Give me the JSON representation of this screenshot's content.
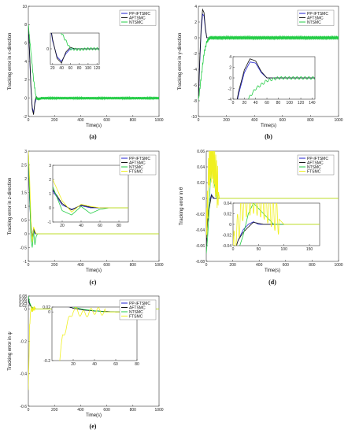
{
  "colors": {
    "PP-IFTSMC": "#1f1fd0",
    "AFTSMC": "#111111",
    "NTSMC": "#22cc44",
    "FTSMC": "#f0f020"
  },
  "chart_data": [
    {
      "type": "line",
      "caption": "(a)",
      "xlabel": "Time(s)",
      "ylabel": "Tracking error in x-direction",
      "xlim": [
        0,
        1000
      ],
      "ylim": [
        -2,
        10
      ],
      "xticks": [
        0,
        200,
        400,
        600,
        800,
        1000
      ],
      "yticks": [
        -2,
        0,
        2,
        4,
        6,
        8,
        10
      ],
      "legend": [
        "PP-IFTSMC",
        "AFTSMC",
        "NTSMC"
      ],
      "series": [
        {
          "name": "PP-IFTSMC",
          "x": [
            0,
            10,
            20,
            30,
            40,
            50,
            60,
            70,
            1000
          ],
          "y": [
            8,
            4.5,
            1,
            -1,
            -1.6,
            -0.6,
            0,
            0,
            0
          ]
        },
        {
          "name": "AFTSMC",
          "x": [
            0,
            10,
            20,
            30,
            40,
            50,
            60,
            70,
            1000
          ],
          "y": [
            8,
            4.8,
            1.2,
            -1.2,
            -1.8,
            -0.4,
            0.2,
            0,
            0
          ]
        },
        {
          "name": "NTSMC",
          "x": [
            0,
            20,
            40,
            60,
            80,
            100,
            1000
          ],
          "y": [
            8,
            5,
            2,
            0,
            -0.1,
            0,
            0
          ],
          "oscillation": 0.15
        }
      ],
      "inset": {
        "xlim": [
          15,
          125
        ],
        "ylim": [
          -2,
          2
        ],
        "xticks": [
          20,
          40,
          60,
          80,
          100,
          120
        ],
        "yticks": [
          0
        ]
      }
    },
    {
      "type": "line",
      "caption": "(b)",
      "xlabel": "Time(s)",
      "ylabel": "Tracking error in y-direction",
      "xlim": [
        0,
        1000
      ],
      "ylim": [
        -10,
        4
      ],
      "xticks": [
        0,
        200,
        400,
        600,
        800,
        1000
      ],
      "yticks": [
        -10,
        -8,
        -6,
        -4,
        -2,
        0,
        2,
        4
      ],
      "legend": [
        "PP-IFTSMC",
        "AFTSMC",
        "NTSMC"
      ],
      "series": [
        {
          "name": "PP-IFTSMC",
          "x": [
            0,
            10,
            20,
            30,
            40,
            50,
            60,
            70,
            1000
          ],
          "y": [
            -8,
            -3,
            1,
            3,
            2.8,
            1,
            0,
            0,
            0
          ]
        },
        {
          "name": "AFTSMC",
          "x": [
            0,
            10,
            20,
            30,
            40,
            50,
            60,
            70,
            1000
          ],
          "y": [
            -8,
            -2.5,
            1.5,
            3.6,
            3.2,
            1.2,
            0,
            0,
            0
          ]
        },
        {
          "name": "NTSMC",
          "x": [
            0,
            20,
            40,
            60,
            80,
            100,
            1000
          ],
          "y": [
            -8,
            -5,
            -2,
            -0.5,
            0,
            0,
            0
          ],
          "oscillation": 0.25
        }
      ],
      "inset": {
        "xlim": [
          0,
          145
        ],
        "ylim": [
          -4,
          4
        ],
        "xticks": [
          0,
          20,
          40,
          60,
          80,
          100,
          120,
          140
        ],
        "yticks": [
          -4,
          -2,
          0,
          2,
          4
        ]
      }
    },
    {
      "type": "line",
      "caption": "(c)",
      "xlabel": "Time(s)",
      "ylabel": "Tracking error in z-direction",
      "xlim": [
        0,
        1000
      ],
      "ylim": [
        -1,
        3
      ],
      "xticks": [
        0,
        200,
        400,
        600,
        800,
        1000
      ],
      "yticks": [
        -1,
        -0.5,
        0,
        0.5,
        1,
        1.5,
        2,
        2.5,
        3
      ],
      "legend": [
        "PP-IFTSMC",
        "AFTSMC",
        "NTSMC",
        "FTSMC"
      ],
      "series": [
        {
          "name": "PP-IFTSMC",
          "x": [
            0,
            10,
            20,
            30,
            40,
            50,
            60,
            70,
            1000
          ],
          "y": [
            3,
            1.2,
            0.2,
            -0.1,
            0.15,
            0,
            0,
            0,
            0
          ]
        },
        {
          "name": "AFTSMC",
          "x": [
            0,
            10,
            20,
            30,
            40,
            50,
            60,
            70,
            1000
          ],
          "y": [
            3,
            1.3,
            0.3,
            -0.15,
            0.2,
            0.05,
            0,
            0,
            0
          ]
        },
        {
          "name": "NTSMC",
          "x": [
            0,
            10,
            20,
            30,
            40,
            50,
            60,
            70,
            80,
            1000
          ],
          "y": [
            3,
            1.5,
            -0.2,
            -0.5,
            0.1,
            -0.4,
            -0.1,
            0,
            0,
            0
          ]
        },
        {
          "name": "FTSMC",
          "x": [
            0,
            10,
            20,
            30,
            40,
            50,
            60,
            70,
            1000
          ],
          "y": [
            3,
            2,
            0.5,
            -0.3,
            0.25,
            0.1,
            0,
            0,
            0
          ]
        }
      ],
      "inset": {
        "xlim": [
          10,
          90
        ],
        "ylim": [
          -1,
          3
        ],
        "xticks": [
          20,
          40,
          60,
          80
        ],
        "yticks": [
          -1,
          0,
          1,
          2,
          3
        ]
      }
    },
    {
      "type": "line",
      "caption": "(d)",
      "xlabel": "Time(s)",
      "ylabel": "Tracking error in θ",
      "xlim": [
        0,
        1000
      ],
      "ylim": [
        -0.08,
        0.06
      ],
      "xticks": [
        0,
        200,
        400,
        600,
        800,
        1000
      ],
      "yticks": [
        -0.08,
        -0.06,
        -0.04,
        -0.02,
        0,
        0.02,
        0.04,
        0.06
      ],
      "legend": [
        "PP-IFTSMC",
        "AFTSMC",
        "NTSMC",
        "FTSMC"
      ],
      "series": [
        {
          "name": "PP-IFTSMC",
          "x": [
            0,
            10,
            20,
            30,
            40,
            50,
            60,
            1000
          ],
          "y": [
            -0.06,
            -0.03,
            -0.01,
            0,
            0.005,
            0,
            0,
            0
          ]
        },
        {
          "name": "AFTSMC",
          "x": [
            0,
            10,
            20,
            30,
            40,
            50,
            60,
            1000
          ],
          "y": [
            -0.06,
            -0.03,
            -0.015,
            -0.005,
            0.004,
            0.002,
            0,
            0
          ]
        },
        {
          "name": "NTSMC",
          "x": [
            0,
            10,
            20,
            30,
            40,
            60,
            80,
            1000
          ],
          "y": [
            -0.07,
            -0.05,
            -0.02,
            0.02,
            0.04,
            0.02,
            0,
            0
          ]
        },
        {
          "name": "FTSMC",
          "x": [
            0,
            20,
            40,
            60,
            80,
            100,
            1000
          ],
          "y": [
            -0.05,
            0.04,
            0.05,
            0.04,
            0.02,
            0,
            0
          ],
          "oscillation": 0.03,
          "osc_until": 90
        }
      ],
      "inset": {
        "xlim": [
          0,
          170
        ],
        "ylim": [
          -0.04,
          0.04
        ],
        "xticks": [
          0,
          50,
          100,
          150
        ],
        "yticks": [
          -0.04,
          -0.02,
          0,
          0.02,
          0.04
        ]
      }
    },
    {
      "type": "line",
      "caption": "(e)",
      "xlabel": "Time(s)",
      "ylabel": "Tracking error in ψ",
      "xlim": [
        0,
        1000
      ],
      "ylim": [
        -0.6,
        0.08
      ],
      "xticks": [
        0,
        200,
        400,
        600,
        800,
        1000
      ],
      "yticks": [
        -0.6,
        -0.4,
        -0.2,
        0,
        0.02,
        0.04,
        0.06,
        0.08
      ],
      "legend": [
        "PP-IFTSMC",
        "AFTSMC",
        "NTSMC",
        "FTSMC"
      ],
      "series": [
        {
          "name": "PP-IFTSMC",
          "x": [
            0,
            10,
            20,
            30,
            40,
            50,
            60,
            1000
          ],
          "y": [
            0.06,
            0.03,
            0.015,
            0.008,
            0.004,
            0.002,
            0,
            0
          ]
        },
        {
          "name": "AFTSMC",
          "x": [
            0,
            10,
            20,
            30,
            40,
            50,
            60,
            1000
          ],
          "y": [
            0.06,
            0.03,
            0.015,
            0.008,
            0.004,
            0.002,
            0,
            0
          ]
        },
        {
          "name": "NTSMC",
          "x": [
            0,
            10,
            20,
            30,
            40,
            50,
            60,
            1000
          ],
          "y": [
            0.08,
            0.04,
            0.02,
            0.01,
            0.005,
            0,
            0,
            0
          ]
        },
        {
          "name": "FTSMC",
          "x": [
            0,
            10,
            20,
            30,
            40,
            50,
            60,
            1000
          ],
          "y": [
            -0.5,
            -0.1,
            0.01,
            -0.01,
            0.005,
            0,
            0,
            0
          ],
          "oscillation": 0.015,
          "osc_until": 50
        }
      ],
      "inset": {
        "xlim": [
          0,
          80
        ],
        "ylim": [
          -0.2,
          0.02
        ],
        "xticks": [
          20,
          40,
          60,
          80
        ],
        "yticks": [
          -0.2,
          0,
          0.02
        ]
      }
    }
  ]
}
